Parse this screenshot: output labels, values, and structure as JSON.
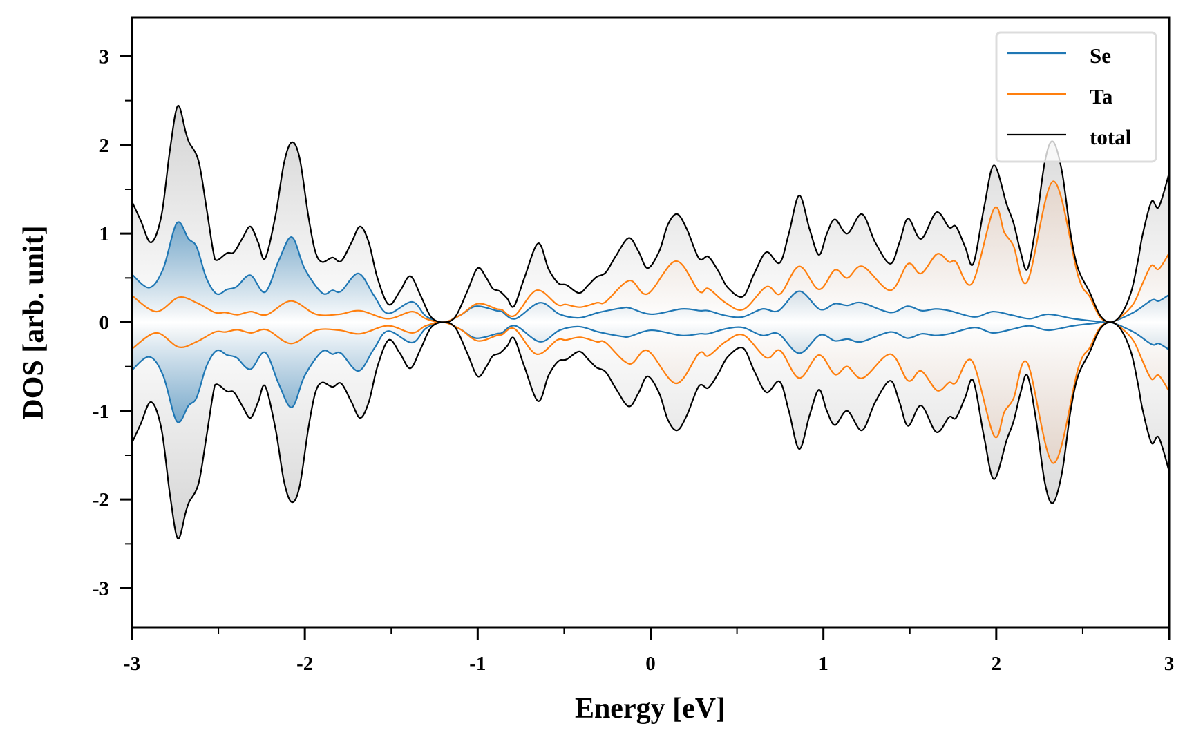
{
  "chart_data": {
    "type": "line",
    "title": "",
    "xlabel": "Energy [eV]",
    "ylabel": "DOS [arb. unit]",
    "xlim": [
      -3,
      3
    ],
    "ylim": [
      -3.44,
      3.44
    ],
    "x_ticks": [
      -3,
      -2,
      -1,
      0,
      1,
      2,
      3
    ],
    "x_tick_labels": [
      "-3",
      "-2",
      "-1",
      "0",
      "1",
      "2",
      "3"
    ],
    "y_ticks": [
      -3,
      -2,
      -1,
      0,
      1,
      2,
      3
    ],
    "y_tick_labels": [
      "-3",
      "-2",
      "-1",
      "0",
      "1",
      "2",
      "3"
    ],
    "x_minor_step": 0.5,
    "y_minor_step": 0.5,
    "grid": false,
    "legend_position": "top-right",
    "mirrored": true,
    "series": [
      {
        "name": "Se",
        "color": "#1f77b4",
        "fill_color": "#1f77b4",
        "points": [
          [
            -3.0,
            0.54
          ],
          [
            -2.9,
            0.39
          ],
          [
            -2.82,
            0.6
          ],
          [
            -2.74,
            1.12
          ],
          [
            -2.673,
            0.94
          ],
          [
            -2.626,
            0.85
          ],
          [
            -2.57,
            0.5
          ],
          [
            -2.51,
            0.32
          ],
          [
            -2.45,
            0.37
          ],
          [
            -2.395,
            0.4
          ],
          [
            -2.315,
            0.53
          ],
          [
            -2.23,
            0.34
          ],
          [
            -2.15,
            0.7
          ],
          [
            -2.075,
            0.96
          ],
          [
            -2.0,
            0.6
          ],
          [
            -1.9,
            0.33
          ],
          [
            -1.84,
            0.36
          ],
          [
            -1.79,
            0.35
          ],
          [
            -1.69,
            0.55
          ],
          [
            -1.6,
            0.3
          ],
          [
            -1.52,
            0.1
          ],
          [
            -1.38,
            0.23
          ],
          [
            -1.3,
            0.07
          ],
          [
            -1.2,
            0.0
          ],
          [
            -1.1,
            0.08
          ],
          [
            -1.01,
            0.18
          ],
          [
            -0.89,
            0.13
          ],
          [
            -0.86,
            0.12
          ],
          [
            -0.782,
            0.04
          ],
          [
            -0.64,
            0.22
          ],
          [
            -0.526,
            0.09
          ],
          [
            -0.413,
            0.05
          ],
          [
            -0.3,
            0.11
          ],
          [
            -0.166,
            0.16
          ],
          [
            -0.12,
            0.16
          ],
          [
            0.007,
            0.09
          ],
          [
            0.18,
            0.15
          ],
          [
            0.287,
            0.13
          ],
          [
            0.334,
            0.13
          ],
          [
            0.434,
            0.075
          ],
          [
            0.534,
            0.06
          ],
          [
            0.647,
            0.15
          ],
          [
            0.74,
            0.13
          ],
          [
            0.86,
            0.35
          ],
          [
            0.98,
            0.145
          ],
          [
            1.067,
            0.21
          ],
          [
            1.14,
            0.19
          ],
          [
            1.22,
            0.22
          ],
          [
            1.387,
            0.11
          ],
          [
            1.486,
            0.18
          ],
          [
            1.57,
            0.13
          ],
          [
            1.65,
            0.15
          ],
          [
            1.73,
            0.13
          ],
          [
            1.874,
            0.06
          ],
          [
            1.98,
            0.12
          ],
          [
            2.09,
            0.08
          ],
          [
            2.194,
            0.04
          ],
          [
            2.3,
            0.09
          ],
          [
            2.447,
            0.04
          ],
          [
            2.58,
            0.01
          ],
          [
            2.66,
            0.0
          ],
          [
            2.794,
            0.11
          ],
          [
            2.9,
            0.25
          ],
          [
            2.94,
            0.24
          ],
          [
            3.0,
            0.31
          ]
        ]
      },
      {
        "name": "Ta",
        "color": "#ff7f0e",
        "fill_color": "#e8a070",
        "points": [
          [
            -3.0,
            0.3
          ],
          [
            -2.86,
            0.12
          ],
          [
            -2.73,
            0.28
          ],
          [
            -2.626,
            0.22
          ],
          [
            -2.52,
            0.11
          ],
          [
            -2.46,
            0.11
          ],
          [
            -2.39,
            0.085
          ],
          [
            -2.31,
            0.12
          ],
          [
            -2.22,
            0.085
          ],
          [
            -2.08,
            0.24
          ],
          [
            -1.935,
            0.09
          ],
          [
            -1.8,
            0.09
          ],
          [
            -1.68,
            0.13
          ],
          [
            -1.52,
            0.04
          ],
          [
            -1.38,
            0.12
          ],
          [
            -1.3,
            0.04
          ],
          [
            -1.2,
            0.0
          ],
          [
            -1.1,
            0.08
          ],
          [
            -1.0,
            0.21
          ],
          [
            -0.89,
            0.15
          ],
          [
            -0.86,
            0.14
          ],
          [
            -0.786,
            0.075
          ],
          [
            -0.66,
            0.36
          ],
          [
            -0.54,
            0.2
          ],
          [
            -0.49,
            0.2
          ],
          [
            -0.406,
            0.17
          ],
          [
            -0.31,
            0.22
          ],
          [
            -0.26,
            0.23
          ],
          [
            -0.123,
            0.47
          ],
          [
            -0.017,
            0.32
          ],
          [
            0.147,
            0.69
          ],
          [
            0.28,
            0.35
          ],
          [
            0.334,
            0.38
          ],
          [
            0.434,
            0.22
          ],
          [
            0.538,
            0.145
          ],
          [
            0.67,
            0.4
          ],
          [
            0.75,
            0.32
          ],
          [
            0.86,
            0.63
          ],
          [
            0.974,
            0.37
          ],
          [
            1.067,
            0.59
          ],
          [
            1.138,
            0.5
          ],
          [
            1.227,
            0.63
          ],
          [
            1.387,
            0.36
          ],
          [
            1.49,
            0.66
          ],
          [
            1.565,
            0.55
          ],
          [
            1.658,
            0.77
          ],
          [
            1.727,
            0.68
          ],
          [
            1.767,
            0.68
          ],
          [
            1.861,
            0.44
          ],
          [
            1.987,
            1.28
          ],
          [
            2.047,
            1.01
          ],
          [
            2.1,
            0.86
          ],
          [
            2.18,
            0.46
          ],
          [
            2.33,
            1.59
          ],
          [
            2.474,
            0.52
          ],
          [
            2.54,
            0.29
          ],
          [
            2.6,
            0.06
          ],
          [
            2.66,
            0.0
          ],
          [
            2.72,
            0.06
          ],
          [
            2.794,
            0.21
          ],
          [
            2.847,
            0.44
          ],
          [
            2.898,
            0.64
          ],
          [
            2.94,
            0.6
          ],
          [
            3.0,
            0.78
          ]
        ]
      },
      {
        "name": "total",
        "color": "#000000",
        "fill_color": "#b4b4b4",
        "points": [
          [
            -3.0,
            1.36
          ],
          [
            -2.95,
            1.15
          ],
          [
            -2.89,
            0.9
          ],
          [
            -2.83,
            1.2
          ],
          [
            -2.78,
            1.95
          ],
          [
            -2.735,
            2.44
          ],
          [
            -2.69,
            2.15
          ],
          [
            -2.67,
            2.03
          ],
          [
            -2.615,
            1.82
          ],
          [
            -2.57,
            1.3
          ],
          [
            -2.53,
            0.8
          ],
          [
            -2.51,
            0.7
          ],
          [
            -2.45,
            0.78
          ],
          [
            -2.41,
            0.79
          ],
          [
            -2.36,
            0.95
          ],
          [
            -2.315,
            1.08
          ],
          [
            -2.27,
            0.9
          ],
          [
            -2.23,
            0.72
          ],
          [
            -2.17,
            1.2
          ],
          [
            -2.12,
            1.8
          ],
          [
            -2.075,
            2.03
          ],
          [
            -2.03,
            1.85
          ],
          [
            -1.98,
            1.2
          ],
          [
            -1.94,
            0.8
          ],
          [
            -1.9,
            0.68
          ],
          [
            -1.84,
            0.73
          ],
          [
            -1.79,
            0.69
          ],
          [
            -1.73,
            0.9
          ],
          [
            -1.68,
            1.08
          ],
          [
            -1.63,
            0.9
          ],
          [
            -1.58,
            0.5
          ],
          [
            -1.515,
            0.2
          ],
          [
            -1.45,
            0.35
          ],
          [
            -1.39,
            0.52
          ],
          [
            -1.33,
            0.3
          ],
          [
            -1.27,
            0.06
          ],
          [
            -1.2,
            0.0
          ],
          [
            -1.13,
            0.06
          ],
          [
            -1.06,
            0.35
          ],
          [
            -1.0,
            0.61
          ],
          [
            -0.95,
            0.5
          ],
          [
            -0.913,
            0.38
          ],
          [
            -0.873,
            0.35
          ],
          [
            -0.83,
            0.27
          ],
          [
            -0.79,
            0.18
          ],
          [
            -0.73,
            0.5
          ],
          [
            -0.65,
            0.89
          ],
          [
            -0.59,
            0.6
          ],
          [
            -0.533,
            0.44
          ],
          [
            -0.486,
            0.42
          ],
          [
            -0.413,
            0.33
          ],
          [
            -0.36,
            0.42
          ],
          [
            -0.313,
            0.51
          ],
          [
            -0.26,
            0.56
          ],
          [
            -0.2,
            0.75
          ],
          [
            -0.126,
            0.95
          ],
          [
            -0.07,
            0.8
          ],
          [
            -0.017,
            0.61
          ],
          [
            0.05,
            0.8
          ],
          [
            0.1,
            1.1
          ],
          [
            0.154,
            1.22
          ],
          [
            0.21,
            1.05
          ],
          [
            0.28,
            0.72
          ],
          [
            0.334,
            0.74
          ],
          [
            0.394,
            0.57
          ],
          [
            0.447,
            0.39
          ],
          [
            0.534,
            0.29
          ],
          [
            0.6,
            0.55
          ],
          [
            0.67,
            0.79
          ],
          [
            0.747,
            0.67
          ],
          [
            0.8,
            1.0
          ],
          [
            0.86,
            1.43
          ],
          [
            0.92,
            1.05
          ],
          [
            0.974,
            0.76
          ],
          [
            1.02,
            1.0
          ],
          [
            1.067,
            1.16
          ],
          [
            1.138,
            1.0
          ],
          [
            1.223,
            1.22
          ],
          [
            1.3,
            0.9
          ],
          [
            1.387,
            0.66
          ],
          [
            1.44,
            0.9
          ],
          [
            1.49,
            1.17
          ],
          [
            1.565,
            0.94
          ],
          [
            1.654,
            1.24
          ],
          [
            1.727,
            1.07
          ],
          [
            1.767,
            1.08
          ],
          [
            1.82,
            0.85
          ],
          [
            1.867,
            0.66
          ],
          [
            1.93,
            1.3
          ],
          [
            1.987,
            1.77
          ],
          [
            2.06,
            1.33
          ],
          [
            2.1,
            1.12
          ],
          [
            2.14,
            0.8
          ],
          [
            2.18,
            0.6
          ],
          [
            2.23,
            1.1
          ],
          [
            2.28,
            1.8
          ],
          [
            2.327,
            2.04
          ],
          [
            2.38,
            1.7
          ],
          [
            2.43,
            1.0
          ],
          [
            2.474,
            0.6
          ],
          [
            2.54,
            0.34
          ],
          [
            2.6,
            0.08
          ],
          [
            2.66,
            0.0
          ],
          [
            2.72,
            0.08
          ],
          [
            2.78,
            0.34
          ],
          [
            2.82,
            0.7
          ],
          [
            2.847,
            0.99
          ],
          [
            2.898,
            1.36
          ],
          [
            2.94,
            1.3
          ],
          [
            3.0,
            1.68
          ]
        ]
      }
    ]
  }
}
